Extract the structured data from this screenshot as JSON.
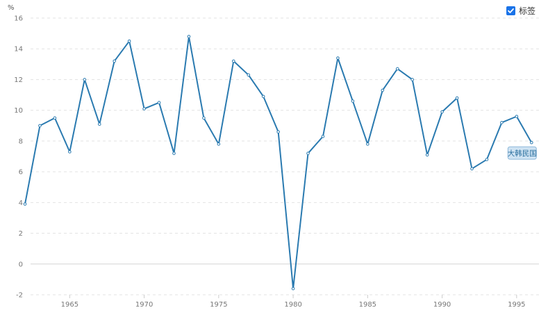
{
  "legend": {
    "checkbox_label": "标签",
    "checked": true
  },
  "colors": {
    "line": "#2a7ab0",
    "grid": "#e3e3e3",
    "axis_text": "#777777",
    "label_bg": "#cfe3f3",
    "label_border": "#8fb9da",
    "label_text": "#2a6f9e",
    "checkbox": "#1a73e8"
  },
  "chart_data": {
    "type": "line",
    "title": "",
    "xlabel": "",
    "ylabel": "%",
    "xlim": [
      1962,
      1996.5
    ],
    "ylim": [
      -2,
      16
    ],
    "grid": true,
    "x_ticks": [
      1965,
      1970,
      1975,
      1980,
      1985,
      1990,
      1995
    ],
    "y_ticks": [
      -2,
      0,
      2,
      4,
      6,
      8,
      10,
      12,
      14,
      16
    ],
    "series": [
      {
        "name": "大韩民国",
        "x": [
          1962,
          1963,
          1964,
          1965,
          1966,
          1967,
          1968,
          1969,
          1970,
          1971,
          1972,
          1973,
          1974,
          1975,
          1976,
          1977,
          1978,
          1979,
          1980,
          1981,
          1982,
          1983,
          1984,
          1985,
          1986,
          1987,
          1988,
          1989,
          1990,
          1991,
          1992,
          1993,
          1994,
          1995,
          1996
        ],
        "values": [
          3.9,
          9.0,
          9.5,
          7.3,
          12.0,
          9.1,
          13.2,
          14.5,
          10.1,
          10.5,
          7.2,
          14.8,
          9.5,
          7.8,
          13.2,
          12.3,
          10.9,
          8.6,
          -1.6,
          7.2,
          8.3,
          13.4,
          10.6,
          7.8,
          11.3,
          12.7,
          12.0,
          7.1,
          9.9,
          10.8,
          6.2,
          6.8,
          9.2,
          9.6,
          7.9
        ]
      }
    ],
    "end_label": "大韩民国"
  }
}
